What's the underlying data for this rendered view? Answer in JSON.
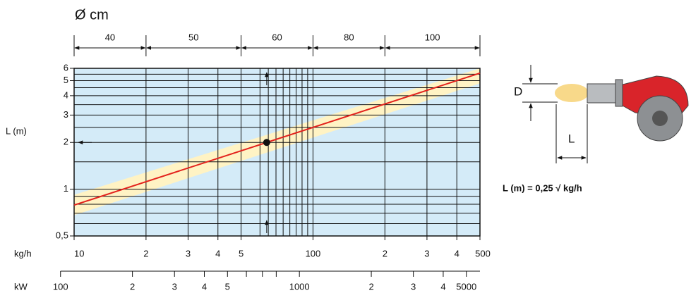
{
  "chart_data": {
    "type": "line",
    "log_x": true,
    "log_y": true,
    "xlabel": "kg/h",
    "ylabel": "L (m)",
    "xlim": [
      10,
      500
    ],
    "ylim": [
      0.5,
      6
    ],
    "xticks": [
      10,
      {
        "value": 20,
        "label": "2"
      },
      {
        "value": 30,
        "label": "3"
      },
      {
        "value": 40,
        "label": "4"
      },
      {
        "value": 50,
        "label": "5"
      },
      100,
      {
        "value": 200,
        "label": "2"
      },
      {
        "value": 300,
        "label": "3"
      },
      {
        "value": 400,
        "label": "4"
      },
      500
    ],
    "yticks": [
      {
        "value": 0.5,
        "label": "0,5"
      },
      1,
      2,
      3,
      4,
      5,
      6
    ],
    "xgrid": [
      60,
      65,
      70,
      75,
      80,
      85,
      90,
      95
    ],
    "ygrid": [
      0.6,
      0.7,
      0.8,
      0.9,
      1.5,
      2.5,
      3.5,
      4.5,
      5.5
    ],
    "x2label": "kW",
    "x2lim": [
      114,
      5700
    ],
    "x2ticks": [
      100,
      {
        "value": 200,
        "label": "2"
      },
      {
        "value": 300,
        "label": "3"
      },
      {
        "value": 400,
        "label": "4"
      },
      {
        "value": 500,
        "label": "5"
      },
      {
        "value": 600,
        "label": ""
      },
      {
        "value": 700,
        "label": ""
      },
      {
        "value": 800,
        "label": ""
      },
      1000,
      {
        "value": 2000,
        "label": "2"
      },
      {
        "value": 3000,
        "label": "3"
      },
      {
        "value": 4000,
        "label": "4"
      },
      5000
    ],
    "diameter": {
      "label": "Ø cm",
      "edges": [
        10,
        20,
        50,
        100,
        200,
        500
      ],
      "values": [
        40,
        50,
        60,
        80,
        100
      ]
    },
    "band": {
      "color": "#fff3c4",
      "x": [
        10,
        500
      ],
      "lower": [
        0.68,
        4.8
      ],
      "upper": [
        0.92,
        6
      ]
    },
    "series": [
      {
        "color": "#e3221c",
        "x": [
          10,
          500
        ],
        "values": [
          0.79,
          5.59
        ]
      }
    ],
    "example": {
      "x": 64,
      "y": 2
    },
    "plot_color": "#d4ebf8"
  },
  "diagram": {
    "d_label": "D",
    "l_label": "L",
    "formula": "L (m) = 0,25 √ kg/h"
  }
}
